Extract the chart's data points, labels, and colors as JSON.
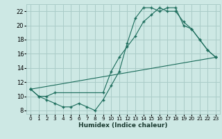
{
  "xlabel": "Humidex (Indice chaleur)",
  "bg_color": "#cde8e4",
  "grid_color": "#aaccc8",
  "line_color": "#1a6b5a",
  "xlim": [
    -0.5,
    23.5
  ],
  "ylim": [
    7.5,
    23.0
  ],
  "xticks": [
    0,
    1,
    2,
    3,
    4,
    5,
    6,
    7,
    8,
    9,
    10,
    11,
    12,
    13,
    14,
    15,
    16,
    17,
    18,
    19,
    20,
    21,
    22,
    23
  ],
  "yticks": [
    8,
    10,
    12,
    14,
    16,
    18,
    20,
    22
  ],
  "line1_x": [
    0,
    1,
    2,
    3,
    4,
    5,
    6,
    7,
    8,
    9,
    10,
    11,
    12,
    13,
    14,
    15,
    16,
    17,
    18,
    19,
    20,
    21,
    22,
    23
  ],
  "line1_y": [
    11.0,
    10.0,
    9.5,
    9.0,
    8.5,
    8.5,
    9.0,
    8.5,
    8.0,
    9.5,
    11.5,
    13.5,
    17.5,
    21.0,
    22.5,
    22.5,
    22.0,
    22.5,
    22.5,
    20.0,
    19.5,
    18.0,
    16.5,
    15.5
  ],
  "line2_x": [
    0,
    1,
    2,
    3,
    9,
    10,
    11,
    12,
    13,
    14,
    15,
    16,
    17,
    18,
    19,
    20,
    21,
    22,
    23
  ],
  "line2_y": [
    11.0,
    10.0,
    10.0,
    10.5,
    10.5,
    13.5,
    15.5,
    17.0,
    18.5,
    20.5,
    21.5,
    22.5,
    22.0,
    22.0,
    20.5,
    19.5,
    18.0,
    16.5,
    15.5
  ],
  "line3_x": [
    0,
    23
  ],
  "line3_y": [
    11.0,
    15.5
  ]
}
